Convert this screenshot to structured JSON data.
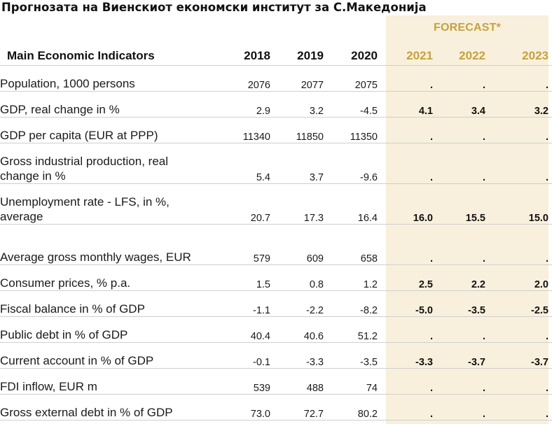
{
  "title": "Прогнозата на Виенскиот економски институт за С.Македонија",
  "chart_data": {
    "type": "table",
    "title": "Прогнозата на Виенскиот економски институт за С.Македонија",
    "forecast_label": "FORECAST*",
    "header_label": "Main Economic Indicators",
    "columns": [
      "2018",
      "2019",
      "2020",
      "2021",
      "2022",
      "2023"
    ],
    "forecast_columns": [
      "2021",
      "2022",
      "2023"
    ],
    "colors": {
      "forecast_band": "#f8f0dc",
      "forecast_text": "#c7a13e"
    },
    "rows": [
      {
        "label": "Population, 1000 persons",
        "values": [
          "2076",
          "2077",
          "2075",
          ".",
          ".",
          "."
        ]
      },
      {
        "label": "GDP, real change in %",
        "values": [
          "2.9",
          "3.2",
          "-4.5",
          "4.1",
          "3.4",
          "3.2"
        ]
      },
      {
        "label": "GDP per capita (EUR at PPP)",
        "values": [
          "11340",
          "11850",
          "11350",
          ".",
          ".",
          "."
        ]
      },
      {
        "label": "Gross industrial production, real change in %",
        "values": [
          "5.4",
          "3.7",
          "-9.6",
          ".",
          ".",
          "."
        ]
      },
      {
        "label": "Unemployment rate - LFS, in %, average",
        "values": [
          "20.7",
          "17.3",
          "16.4",
          "16.0",
          "15.5",
          "15.0"
        ]
      },
      {
        "label": "Average gross monthly wages, EUR",
        "values": [
          "579",
          "609",
          "658",
          ".",
          ".",
          "."
        ]
      },
      {
        "label": "Consumer prices, % p.a.",
        "values": [
          "1.5",
          "0.8",
          "1.2",
          "2.5",
          "2.2",
          "2.0"
        ]
      },
      {
        "label": "Fiscal balance in % of GDP",
        "values": [
          "-1.1",
          "-2.2",
          "-8.2",
          "-5.0",
          "-3.5",
          "-2.5"
        ]
      },
      {
        "label": "Public debt in % of GDP",
        "values": [
          "40.4",
          "40.6",
          "51.2",
          ".",
          ".",
          "."
        ]
      },
      {
        "label": "Current account in % of GDP",
        "values": [
          "-0.1",
          "-3.3",
          "-3.5",
          "-3.3",
          "-3.7",
          "-3.7"
        ]
      },
      {
        "label": "FDI inflow, EUR m",
        "values": [
          "539",
          "488",
          "74",
          ".",
          ".",
          "."
        ]
      },
      {
        "label": "Gross external debt in % of GDP",
        "values": [
          "73.0",
          "72.7",
          "80.2",
          ".",
          ".",
          "."
        ]
      }
    ]
  }
}
